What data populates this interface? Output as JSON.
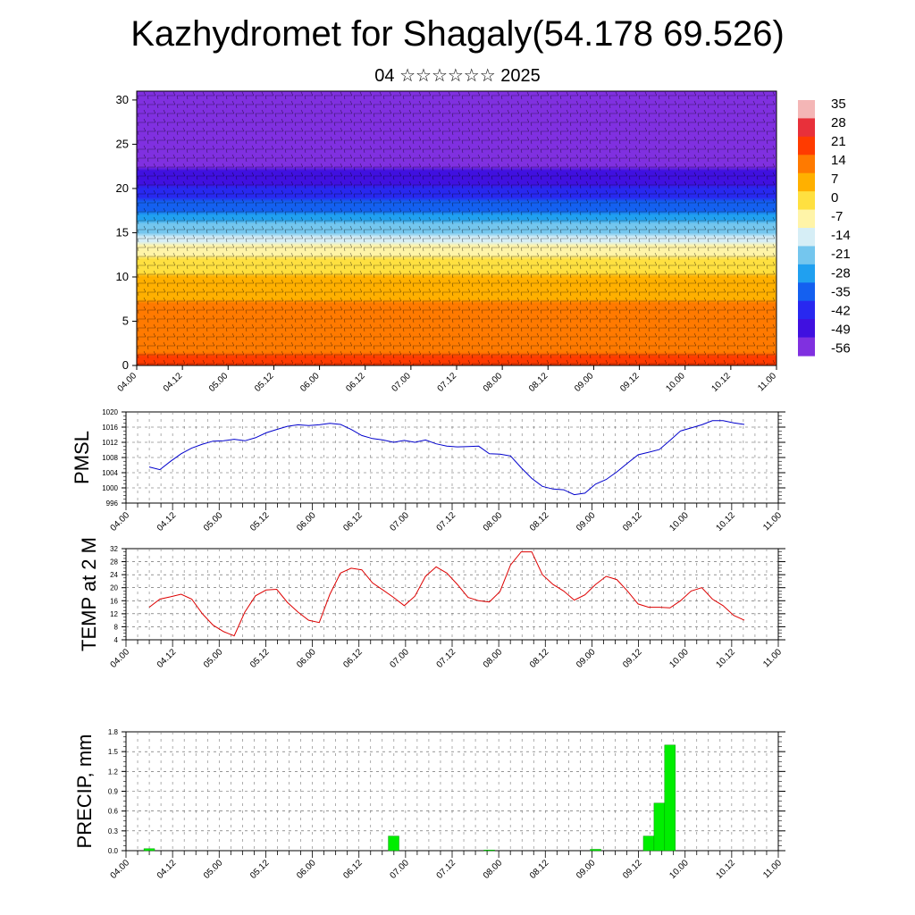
{
  "header": {
    "title": "Kazhydromet for Shagaly(54.178 69.526)",
    "subtitle": "04 ☆☆☆☆☆☆ 2025"
  },
  "chart_data": [
    {
      "id": "cross_section",
      "type": "heatmap",
      "title": "",
      "x_tick_labels": [
        "04.00",
        "04.12",
        "05.00",
        "05.12",
        "06.00",
        "06.12",
        "07.00",
        "07.12",
        "08.00",
        "08.12",
        "09.00",
        "09.12",
        "10.00",
        "10.12",
        "11.00"
      ],
      "y_ticks": [
        0,
        5,
        10,
        15,
        20,
        25,
        30
      ],
      "ylim": [
        0,
        31
      ],
      "xlim": [
        0,
        14
      ],
      "colorbar": {
        "labels": [
          "35",
          "28",
          "21",
          "14",
          "7",
          "0",
          "-7",
          "-14",
          "-21",
          "-28",
          "-35",
          "-42",
          "-49",
          "-56"
        ],
        "colors": [
          "#f4b6b6",
          "#e8303a",
          "#ff3b00",
          "#ff7a00",
          "#ffb000",
          "#ffe040",
          "#fff4a8",
          "#d6eef6",
          "#74c6ee",
          "#20a0f0",
          "#1460f0",
          "#2828f0",
          "#4010e0",
          "#8030e0"
        ]
      },
      "temperature_levels": [
        {
          "height": 0,
          "value": 22
        },
        {
          "height": 4,
          "value": 19
        },
        {
          "height": 8,
          "value": 13
        },
        {
          "height": 12,
          "value": 2
        },
        {
          "height": 15,
          "value": -14
        },
        {
          "height": 18,
          "value": -32
        },
        {
          "height": 21,
          "value": -46
        },
        {
          "height": 25,
          "value": -54
        },
        {
          "height": 31,
          "value": -52
        }
      ],
      "wind_barbs": true
    },
    {
      "id": "pmsl",
      "type": "line",
      "ylabel": "PMSL",
      "color": "#0000cc",
      "ylim": [
        996,
        1020
      ],
      "y_ticks": [
        996,
        1000,
        1004,
        1008,
        1012,
        1016,
        1020
      ],
      "x_tick_labels": [
        "04.00",
        "04.12",
        "05.00",
        "05.12",
        "06.00",
        "06.12",
        "07.00",
        "07.12",
        "08.00",
        "08.12",
        "09.00",
        "09.12",
        "10.00",
        "10.12",
        "11.00"
      ],
      "x": [
        0,
        0.25,
        0.5,
        0.75,
        1,
        1.25,
        1.5,
        1.75,
        2,
        2.25,
        2.5,
        2.75,
        3,
        3.25,
        3.5,
        3.75,
        4,
        4.25,
        4.5,
        4.75,
        5,
        5.25,
        5.5,
        5.75,
        6,
        6.25,
        6.5,
        6.75,
        7,
        7.25,
        7.5,
        7.75,
        8,
        8.25,
        8.5,
        8.75,
        9,
        9.25,
        9.5,
        9.75,
        10,
        10.25,
        10.5,
        10.75,
        11,
        11.25,
        11.5,
        11.75,
        12,
        12.25,
        12.5,
        12.75,
        13,
        13.25,
        13.5,
        13.75,
        14
      ],
      "values": [
        1005.5,
        1004.8,
        1007,
        1009,
        1010.5,
        1011.5,
        1012.3,
        1012.4,
        1012.8,
        1012.4,
        1013.2,
        1014.5,
        1015.4,
        1016.2,
        1016.6,
        1016.4,
        1016.6,
        1017,
        1016.7,
        1015.4,
        1013.8,
        1013,
        1012.6,
        1012,
        1012.5,
        1012,
        1012.6,
        1011.6,
        1011,
        1010.8,
        1010.9,
        1011,
        1009,
        1008.9,
        1008.4,
        1005.3,
        1002.5,
        1000.4,
        999.7,
        999.5,
        998.2,
        998.6,
        1001,
        1002.2,
        1004.2,
        1006.5,
        1008.7,
        1009.4,
        1010.1,
        1012.5,
        1015,
        1015.8,
        1016.6,
        1017.7,
        1017.7,
        1017.1,
        1016.7
      ]
    },
    {
      "id": "temp2m",
      "type": "line",
      "ylabel": "TEMP at 2 M",
      "color": "#dd0000",
      "ylim": [
        4,
        32
      ],
      "y_ticks": [
        4,
        8,
        12,
        16,
        20,
        24,
        28,
        32
      ],
      "x_tick_labels": [
        "04.00",
        "04.12",
        "05.00",
        "05.12",
        "06.00",
        "06.12",
        "07.00",
        "07.12",
        "08.00",
        "08.12",
        "09.00",
        "09.12",
        "10.00",
        "10.12",
        "11.00"
      ],
      "x": [
        0,
        0.25,
        0.5,
        0.75,
        1,
        1.25,
        1.5,
        1.75,
        2,
        2.25,
        2.5,
        2.75,
        3,
        3.25,
        3.5,
        3.75,
        4,
        4.25,
        4.5,
        4.75,
        5,
        5.25,
        5.5,
        5.75,
        6,
        6.25,
        6.5,
        6.75,
        7,
        7.25,
        7.5,
        7.75,
        8,
        8.25,
        8.5,
        8.75,
        9,
        9.25,
        9.5,
        9.75,
        10,
        10.25,
        10.5,
        10.75,
        11,
        11.25,
        11.5,
        11.75,
        12,
        12.25,
        12.5,
        12.75,
        13,
        13.25,
        13.5,
        13.75,
        14
      ],
      "values": [
        14,
        16.5,
        17.2,
        18,
        16.5,
        12,
        8.5,
        6.5,
        5.2,
        12.5,
        17.5,
        19.3,
        19.5,
        15.5,
        12.5,
        10,
        9.3,
        18,
        24.5,
        26,
        25.5,
        21.5,
        19.3,
        17,
        14.5,
        17.4,
        23.5,
        26.4,
        24.5,
        21,
        17,
        16,
        15.6,
        18.8,
        27,
        31,
        31,
        24,
        21,
        19,
        16.2,
        17.8,
        21,
        23.5,
        22.5,
        19,
        15,
        14,
        14,
        13.8,
        16,
        19,
        20,
        16.5,
        14.5,
        11.5,
        10
      ]
    },
    {
      "id": "precip",
      "type": "bar",
      "ylabel": "PRECIP, mm",
      "color": "#00ee00",
      "ylim": [
        0,
        1.8
      ],
      "y_ticks": [
        0.0,
        0.3,
        0.6,
        0.9,
        1.2,
        1.5,
        1.8
      ],
      "y_tick_labels": [
        "0.0",
        "0.3",
        "0.6",
        "0.9",
        "1.2",
        "1.5",
        "1.8"
      ],
      "x_tick_labels": [
        "04.00",
        "04.12",
        "05.00",
        "05.12",
        "06.00",
        "06.12",
        "07.00",
        "07.12",
        "08.00",
        "08.12",
        "09.00",
        "09.12",
        "10.00",
        "10.12",
        "11.00"
      ],
      "bars": [
        {
          "x": 0.0,
          "value": 0.03
        },
        {
          "x": 5.75,
          "value": 0.22
        },
        {
          "x": 8.0,
          "value": 0.01
        },
        {
          "x": 10.5,
          "value": 0.02
        },
        {
          "x": 11.75,
          "value": 0.22
        },
        {
          "x": 12.0,
          "value": 0.72
        },
        {
          "x": 12.25,
          "value": 1.6
        }
      ]
    }
  ]
}
